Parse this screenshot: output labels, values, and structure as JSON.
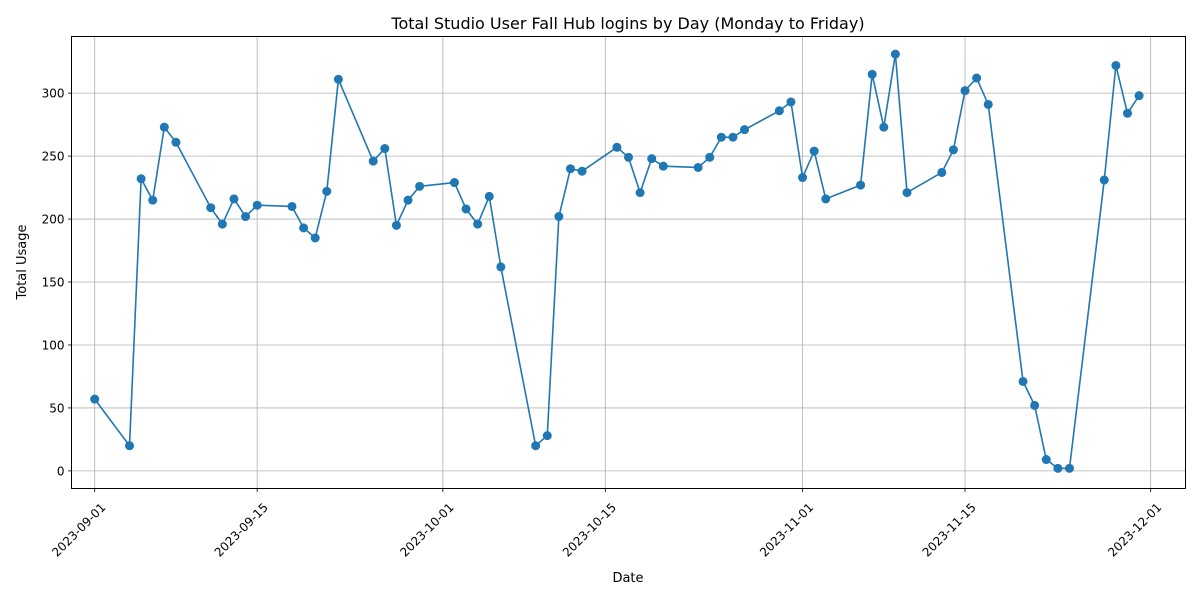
{
  "chart_data": {
    "type": "line",
    "title": "Total Studio User Fall Hub logins by Day (Monday to Friday)",
    "xlabel": "Date",
    "ylabel": "Total Usage",
    "grid": true,
    "line_color": "#1f77b4",
    "xlim": [
      "2023-08-30",
      "2023-12-04"
    ],
    "ylim": [
      -14,
      345
    ],
    "x_ticks": [
      "2023-09-01",
      "2023-09-15",
      "2023-10-01",
      "2023-10-15",
      "2023-11-01",
      "2023-11-15",
      "2023-12-01"
    ],
    "y_ticks": [
      0,
      50,
      100,
      150,
      200,
      250,
      300
    ],
    "series": [
      {
        "points": [
          [
            "2023-09-01",
            57
          ],
          [
            "2023-09-04",
            20
          ],
          [
            "2023-09-05",
            232
          ],
          [
            "2023-09-06",
            215
          ],
          [
            "2023-09-07",
            273
          ],
          [
            "2023-09-08",
            261
          ],
          [
            "2023-09-11",
            209
          ],
          [
            "2023-09-12",
            196
          ],
          [
            "2023-09-13",
            216
          ],
          [
            "2023-09-14",
            202
          ],
          [
            "2023-09-15",
            211
          ],
          [
            "2023-09-18",
            210
          ],
          [
            "2023-09-19",
            193
          ],
          [
            "2023-09-20",
            185
          ],
          [
            "2023-09-21",
            222
          ],
          [
            "2023-09-22",
            311
          ],
          [
            "2023-09-25",
            246
          ],
          [
            "2023-09-26",
            256
          ],
          [
            "2023-09-27",
            195
          ],
          [
            "2023-09-28",
            215
          ],
          [
            "2023-09-29",
            226
          ],
          [
            "2023-10-02",
            229
          ],
          [
            "2023-10-03",
            208
          ],
          [
            "2023-10-04",
            196
          ],
          [
            "2023-10-05",
            218
          ],
          [
            "2023-10-06",
            162
          ],
          [
            "2023-10-09",
            20
          ],
          [
            "2023-10-10",
            28
          ],
          [
            "2023-10-11",
            202
          ],
          [
            "2023-10-12",
            240
          ],
          [
            "2023-10-13",
            238
          ],
          [
            "2023-10-16",
            257
          ],
          [
            "2023-10-17",
            249
          ],
          [
            "2023-10-18",
            221
          ],
          [
            "2023-10-19",
            248
          ],
          [
            "2023-10-20",
            242
          ],
          [
            "2023-10-23",
            241
          ],
          [
            "2023-10-24",
            249
          ],
          [
            "2023-10-25",
            265
          ],
          [
            "2023-10-26",
            265
          ],
          [
            "2023-10-27",
            271
          ],
          [
            "2023-10-30",
            286
          ],
          [
            "2023-10-31",
            293
          ],
          [
            "2023-11-01",
            233
          ],
          [
            "2023-11-02",
            254
          ],
          [
            "2023-11-03",
            216
          ],
          [
            "2023-11-06",
            227
          ],
          [
            "2023-11-07",
            315
          ],
          [
            "2023-11-08",
            273
          ],
          [
            "2023-11-09",
            331
          ],
          [
            "2023-11-10",
            221
          ],
          [
            "2023-11-13",
            237
          ],
          [
            "2023-11-14",
            255
          ],
          [
            "2023-11-15",
            302
          ],
          [
            "2023-11-16",
            312
          ],
          [
            "2023-11-17",
            291
          ],
          [
            "2023-11-20",
            71
          ],
          [
            "2023-11-21",
            52
          ],
          [
            "2023-11-22",
            9
          ],
          [
            "2023-11-23",
            2
          ],
          [
            "2023-11-24",
            2
          ],
          [
            "2023-11-27",
            231
          ],
          [
            "2023-11-28",
            322
          ],
          [
            "2023-11-29",
            284
          ],
          [
            "2023-11-30",
            298
          ]
        ]
      }
    ]
  }
}
